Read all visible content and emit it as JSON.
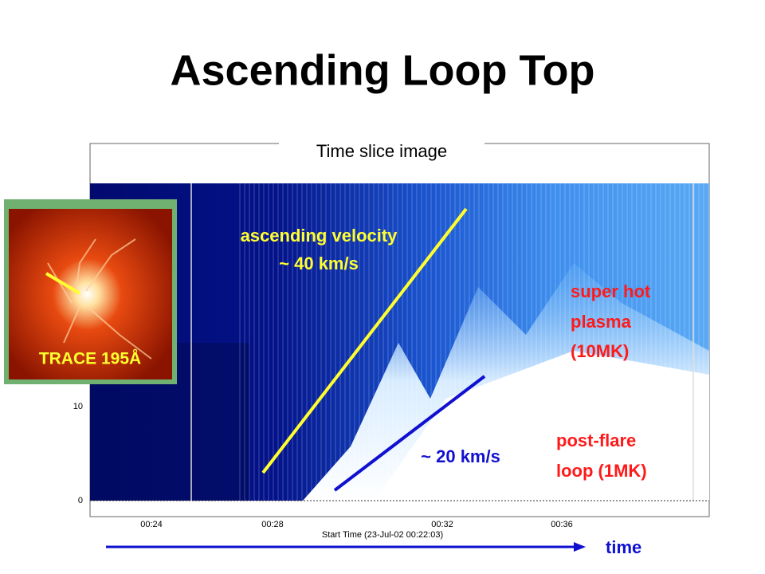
{
  "slide": {
    "title": "Ascending Loop Top",
    "plot": {
      "caption": "Time slice image",
      "x_ticks": [
        "00:24",
        "00:28",
        "00:32",
        "00:36"
      ],
      "x_axis_label": "Start Time (23-Jul-02 00:22:03)",
      "y_ticks": [
        "0",
        "10"
      ]
    },
    "annotations": {
      "ascending_velocity": [
        "ascending velocity",
        "~ 40 km/s"
      ],
      "slow_velocity": "~ 20 km/s",
      "super_hot": [
        "super hot",
        "plasma",
        "(10MK)"
      ],
      "post_flare": [
        "post-flare",
        "loop (1MK)"
      ]
    },
    "inset_label": "TRACE 195Å",
    "time_label": "time"
  }
}
